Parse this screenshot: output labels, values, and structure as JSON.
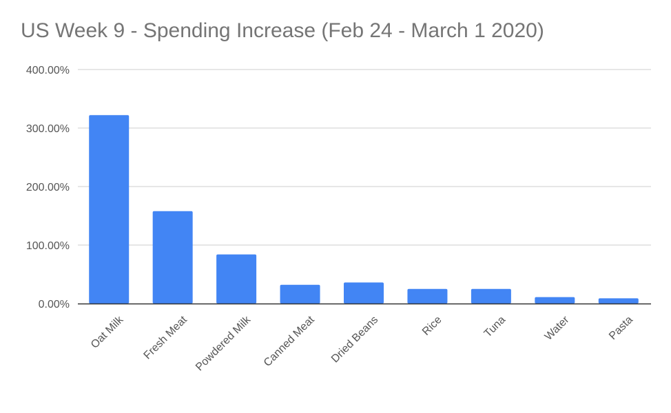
{
  "chart_data": {
    "type": "bar",
    "title": "US Week 9 - Spending Increase (Feb 24 - March 1 2020)",
    "xlabel": "",
    "ylabel": "",
    "categories": [
      "Oat Milk",
      "Fresh Meat",
      "Powdered Milk",
      "Canned Meat",
      "Dried Beans",
      "Rice",
      "Tuna",
      "Water",
      "Pasta"
    ],
    "series": [
      {
        "values": [
          322,
          158,
          84,
          32,
          36,
          25,
          25,
          11,
          9
        ]
      }
    ],
    "ylim": [
      0,
      400
    ],
    "yticks": [
      "0.00%",
      "100.00%",
      "200.00%",
      "300.00%",
      "400.00%"
    ],
    "grid": true,
    "legend": "none",
    "colors": {
      "bar": "#4285F4",
      "grid": "#cccccc",
      "axis": "#333333",
      "title": "#757575",
      "label": "#555555"
    }
  }
}
